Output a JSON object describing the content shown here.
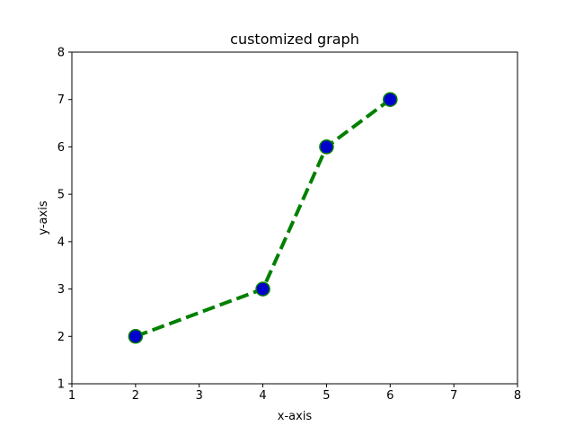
{
  "chart_data": {
    "type": "line",
    "title": "customized graph",
    "xlabel": "x-axis",
    "ylabel": "y-axis",
    "xlim": [
      1,
      8
    ],
    "ylim": [
      1,
      8
    ],
    "xticks": [
      "1",
      "2",
      "3",
      "4",
      "5",
      "6",
      "7",
      "8"
    ],
    "yticks": [
      "1",
      "2",
      "3",
      "4",
      "5",
      "6",
      "7",
      "8"
    ],
    "grid": false,
    "series": [
      {
        "x": [
          2,
          4,
          5,
          6
        ],
        "y": [
          2,
          3,
          6,
          7
        ],
        "line_color": "#008000",
        "line_style": "dashed",
        "marker": "circle",
        "marker_face_color": "#0000cc",
        "marker_edge_color": "#008000"
      }
    ]
  }
}
